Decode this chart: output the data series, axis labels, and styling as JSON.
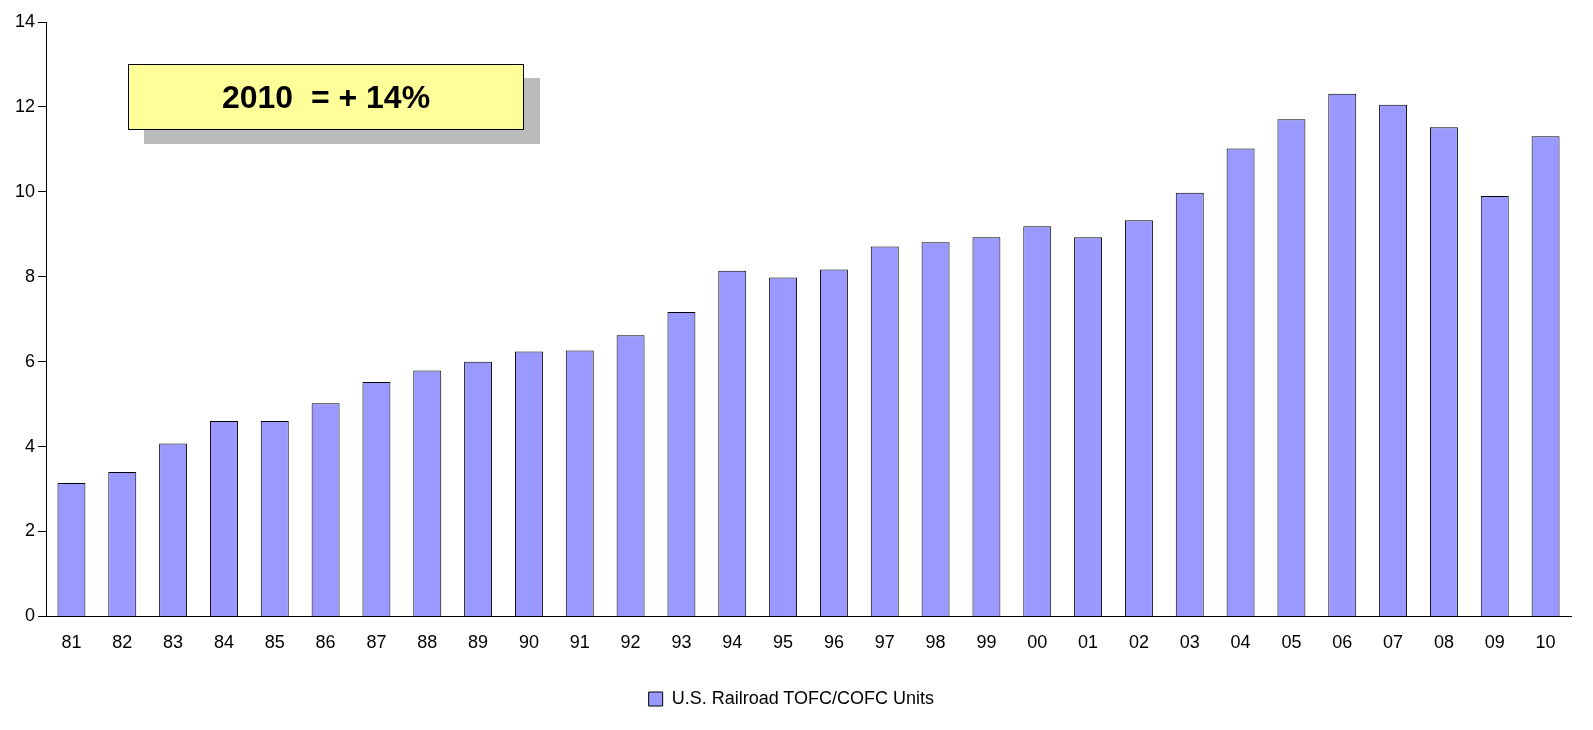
{
  "chart_data": {
    "type": "bar",
    "categories": [
      "81",
      "82",
      "83",
      "84",
      "85",
      "86",
      "87",
      "88",
      "89",
      "90",
      "91",
      "92",
      "93",
      "94",
      "95",
      "96",
      "97",
      "98",
      "99",
      "00",
      "01",
      "02",
      "03",
      "04",
      "05",
      "06",
      "07",
      "08",
      "09",
      "10"
    ],
    "series": [
      {
        "name": "U.S. Railroad TOFC/COFC Units",
        "color": "#9999ff",
        "values": [
          3.14,
          3.4,
          4.07,
          4.6,
          4.6,
          5.02,
          5.52,
          5.79,
          6.0,
          6.24,
          6.26,
          6.62,
          7.17,
          8.14,
          7.98,
          8.17,
          8.71,
          8.81,
          8.93,
          9.19,
          8.93,
          9.33,
          9.98,
          11.02,
          11.71,
          12.31,
          12.05,
          11.52,
          9.9,
          11.31
        ]
      }
    ],
    "ylim": [
      0,
      14
    ],
    "yticks": [
      0,
      2,
      4,
      6,
      8,
      10,
      12,
      14
    ],
    "grid": false,
    "legend": "bottom",
    "annotations": [
      "2010  = + 14%"
    ]
  }
}
